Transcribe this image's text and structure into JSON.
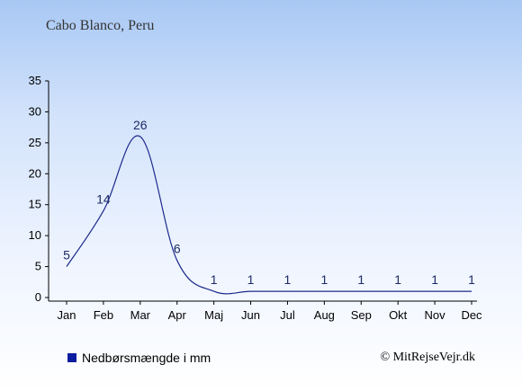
{
  "header": {
    "location": "Cabo Blanco, Peru"
  },
  "legend": {
    "label": "Nedbørsmængde i mm",
    "swatch_color": "#0a1ca0"
  },
  "footer": {
    "copyright": "© MitRejseVejr.dk"
  },
  "colors": {
    "line": "#1c2a8c",
    "label": "#1c2a68",
    "axis": "#000000"
  },
  "chart_data": {
    "type": "line",
    "categories": [
      "Jan",
      "Feb",
      "Mar",
      "Apr",
      "Maj",
      "Jun",
      "Jul",
      "Aug",
      "Sep",
      "Okt",
      "Nov",
      "Dec"
    ],
    "series": [
      {
        "name": "Nedbørsmængde i mm",
        "values": [
          5,
          14,
          26,
          6,
          1,
          1,
          1,
          1,
          1,
          1,
          1,
          1
        ]
      }
    ],
    "ylim": [
      0,
      35
    ],
    "yticks": [
      0,
      5,
      10,
      15,
      20,
      25,
      30,
      35
    ],
    "grid": false,
    "legend_position": "bottom-left"
  }
}
